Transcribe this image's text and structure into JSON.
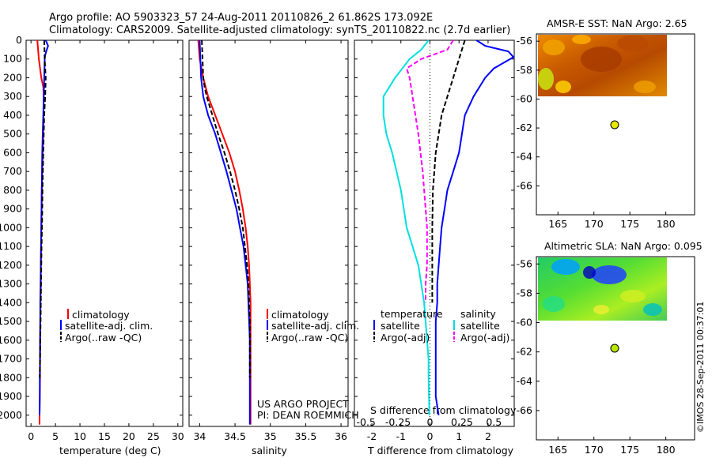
{
  "title": {
    "line1": "Argo profile: AO 5903323_57 24-Aug-2011 20110826_2 61.862S 173.092E",
    "line2": "Climatology: CARS2009. Satellite-adjusted climatology: synTS_20110822.nc (2.7d earlier)"
  },
  "credit": "©IMOS 28-Sep-2011 00:37:01",
  "colors": {
    "climatology": "#ff0000",
    "satellite": "#0000ff",
    "argo": "#000000",
    "sal_satellite": "#00e0e0",
    "sal_argo": "#ff00ff",
    "marker_sst": "#e6e600",
    "marker_sla": "#b8e600"
  },
  "panels": {
    "depth_ticks": [
      "0",
      "100",
      "200",
      "300",
      "400",
      "500",
      "600",
      "700",
      "800",
      "900",
      "1000",
      "1100",
      "1200",
      "1300",
      "1400",
      "1500",
      "1600",
      "1700",
      "1800",
      "1900",
      "2000"
    ],
    "temperature": {
      "xlabel": "temperature (deg C)",
      "xticks": [
        "0",
        "5",
        "10",
        "15",
        "20",
        "25",
        "30"
      ],
      "legend": [
        "climatology",
        "satellite-adj. clim.",
        "Argo(..raw -QC)"
      ]
    },
    "salinity": {
      "xlabel": "salinity",
      "xticks": [
        "34",
        "34.5",
        "35",
        "35.5",
        "36"
      ],
      "legend": [
        "climatology",
        "satellite-adj. clim.",
        "Argo(..raw -QC)"
      ],
      "note1": "US ARGO PROJECT",
      "note2": "PI: DEAN ROEMMICH"
    },
    "difference": {
      "top_label": "S difference from climatology",
      "top_ticks": [
        "-0.5",
        "-0.25",
        "0",
        "0.25",
        "0.5"
      ],
      "xlabel": "T difference from climatology",
      "xticks": [
        "-2",
        "-1",
        "0",
        "1",
        "2"
      ],
      "legend_temp_title": "temperature",
      "legend_temp": [
        "satellite",
        "Argo(-adj)"
      ],
      "legend_sal_title": "salinity",
      "legend_sal": [
        "satellite",
        "Argo(-adj)"
      ]
    },
    "sst_map": {
      "title": "AMSR-E SST: NaN Argo: 2.65",
      "yticks": [
        "-56",
        "-58",
        "-60",
        "-62",
        "-64",
        "-66"
      ],
      "xticks": [
        "165",
        "170",
        "175",
        "180"
      ]
    },
    "sla_map": {
      "title": "Altimetric SLA: NaN Argo: 0.095",
      "yticks": [
        "-56",
        "-58",
        "-60",
        "-62",
        "-64",
        "-66"
      ],
      "xticks": [
        "165",
        "170",
        "175",
        "180"
      ]
    }
  },
  "chart_data": [
    {
      "type": "line",
      "panel": "temperature",
      "xlabel": "temperature (deg C)",
      "ylabel": "",
      "xlim": [
        -1,
        31
      ],
      "ylim": [
        2060,
        0
      ],
      "series": [
        {
          "name": "climatology",
          "x": [
            1.3,
            1.6,
            2.1,
            2.5,
            2.6,
            2.55,
            2.5,
            2.4,
            2.3,
            2.2,
            2.15,
            2.1,
            2.05,
            2.0,
            2.0,
            1.95,
            1.9,
            1.9,
            1.85,
            1.85,
            1.8,
            1.75,
            1.75
          ],
          "y": [
            0,
            100,
            200,
            250,
            300,
            400,
            500,
            600,
            700,
            800,
            900,
            1000,
            1100,
            1200,
            1300,
            1400,
            1500,
            1600,
            1700,
            1800,
            1900,
            2000,
            2050
          ]
        },
        {
          "name": "satellite-adj. clim.",
          "x": [
            3.0,
            3.5,
            3.1,
            2.9,
            2.8,
            2.7,
            2.6,
            2.5,
            2.4,
            2.3,
            2.25,
            2.2,
            2.15,
            2.1,
            2.05,
            2.0,
            1.95,
            1.9,
            1.9,
            1.85,
            1.85,
            1.8,
            1.8,
            1.75
          ],
          "y": [
            0,
            30,
            60,
            80,
            100,
            200,
            300,
            400,
            500,
            600,
            700,
            800,
            900,
            1000,
            1100,
            1200,
            1300,
            1400,
            1500,
            1600,
            1700,
            1800,
            1900,
            2000
          ]
        },
        {
          "name": "Argo(..raw -QC)",
          "x": [
            2.7,
            2.75,
            2.8,
            2.9,
            3.0,
            2.9,
            2.7,
            2.5,
            2.35,
            2.25,
            2.15,
            2.1,
            2.05,
            2.0,
            1.95,
            1.9,
            1.85,
            1.8
          ],
          "y": [
            0,
            50,
            100,
            150,
            200,
            300,
            400,
            600,
            800,
            1000,
            1100,
            1200,
            1300,
            1400,
            1500,
            1600,
            1700,
            1800
          ]
        }
      ]
    },
    {
      "type": "line",
      "panel": "salinity",
      "xlabel": "salinity",
      "ylabel": "",
      "xlim": [
        33.85,
        36.1
      ],
      "ylim": [
        2060,
        0
      ],
      "series": [
        {
          "name": "climatology",
          "x": [
            33.98,
            34.0,
            34.05,
            34.12,
            34.22,
            34.32,
            34.42,
            34.5,
            34.56,
            34.61,
            34.65,
            34.68,
            34.7,
            34.71,
            34.72,
            34.72,
            34.72,
            34.72,
            34.72,
            34.72,
            34.72
          ],
          "y": [
            0,
            100,
            200,
            300,
            400,
            500,
            600,
            700,
            800,
            900,
            1000,
            1100,
            1200,
            1300,
            1400,
            1500,
            1600,
            1700,
            1800,
            1900,
            2050
          ]
        },
        {
          "name": "satellite-adj. clim.",
          "x": [
            34.0,
            34.01,
            34.02,
            34.05,
            34.12,
            34.22,
            34.3,
            34.38,
            34.45,
            34.52,
            34.57,
            34.62,
            34.65,
            34.68,
            34.69,
            34.7,
            34.71,
            34.71,
            34.71,
            34.71,
            34.71
          ],
          "y": [
            0,
            100,
            200,
            300,
            400,
            500,
            600,
            700,
            800,
            900,
            1000,
            1100,
            1200,
            1300,
            1400,
            1500,
            1600,
            1700,
            1800,
            1900,
            2050
          ]
        },
        {
          "name": "Argo(..raw -QC)",
          "x": [
            34.03,
            34.04,
            34.05,
            34.07,
            34.1,
            34.18,
            34.26,
            34.35,
            34.43,
            34.5,
            34.56,
            34.61,
            34.64,
            34.67,
            34.69,
            34.7,
            34.71,
            34.71,
            34.71
          ],
          "y": [
            0,
            100,
            200,
            250,
            300,
            400,
            500,
            600,
            700,
            800,
            900,
            1000,
            1100,
            1200,
            1300,
            1400,
            1500,
            1600,
            1800
          ]
        }
      ]
    },
    {
      "type": "line",
      "panel": "difference",
      "xlabel": "T difference from climatology",
      "ylabel": "",
      "xlim": [
        -2.6,
        2.9
      ],
      "ylim": [
        2060,
        0
      ],
      "series": [
        {
          "name": "temperature satellite",
          "x": [
            1.6,
            1.9,
            2.7,
            3.0,
            2.2,
            1.9,
            1.5,
            1.2,
            1.1,
            1.0,
            0.8,
            0.6,
            0.5,
            0.4,
            0.35,
            0.3,
            0.25,
            0.25,
            0.2,
            0.2,
            0.2,
            0.2,
            0.3
          ],
          "y": [
            0,
            30,
            60,
            90,
            150,
            200,
            300,
            400,
            500,
            600,
            700,
            800,
            900,
            1000,
            1100,
            1200,
            1300,
            1400,
            1500,
            1600,
            1800,
            1900,
            2000
          ]
        },
        {
          "name": "temperature Argo(-adj)",
          "x": [
            1.2,
            1.0,
            0.8,
            0.6,
            0.4,
            0.3,
            0.2,
            0.15,
            0.1,
            0.08,
            0.08,
            0.08
          ],
          "y": [
            0,
            100,
            200,
            300,
            400,
            500,
            600,
            700,
            800,
            1000,
            1200,
            1400
          ]
        },
        {
          "name": "salinity satellite",
          "x": [
            -0.05,
            -0.3,
            -0.7,
            -1.2,
            -1.6,
            -1.6,
            -1.5,
            -1.3,
            -1.0,
            -0.8,
            -0.6,
            -0.4,
            -0.3,
            -0.2,
            -0.15,
            -0.1,
            -0.05,
            -0.05,
            -0.02
          ],
          "y": [
            0,
            50,
            100,
            200,
            300,
            400,
            500,
            600,
            800,
            1000,
            1100,
            1200,
            1300,
            1400,
            1500,
            1600,
            1700,
            1800,
            2000
          ]
        },
        {
          "name": "salinity Argo(-adj)",
          "x": [
            0.8,
            0.6,
            -0.3,
            -0.8,
            -0.7,
            -0.6,
            -0.4,
            -0.25,
            -0.15,
            -0.1,
            -0.1,
            -0.15,
            -0.15
          ],
          "y": [
            0,
            50,
            100,
            150,
            200,
            300,
            500,
            700,
            900,
            1000,
            1200,
            1300,
            1400
          ]
        }
      ]
    },
    {
      "type": "heatmap",
      "panel": "sst_map",
      "title": "AMSR-E SST: NaN Argo: 2.65",
      "xlim": [
        162,
        184
      ],
      "ylim": [
        -68,
        -55.5
      ],
      "data_extent": {
        "lon": [
          163,
          180
        ],
        "lat": [
          -60.2,
          -55.6
        ]
      },
      "argo_position": {
        "lon": 173.1,
        "lat": -61.9
      }
    },
    {
      "type": "heatmap",
      "panel": "sla_map",
      "title": "Altimetric SLA: NaN Argo: 0.095",
      "xlim": [
        162,
        184
      ],
      "ylim": [
        -68,
        -55.5
      ],
      "data_extent": {
        "lon": [
          163,
          180
        ],
        "lat": [
          -60.2,
          -55.6
        ]
      },
      "argo_position": {
        "lon": 173.1,
        "lat": -61.9
      }
    }
  ]
}
